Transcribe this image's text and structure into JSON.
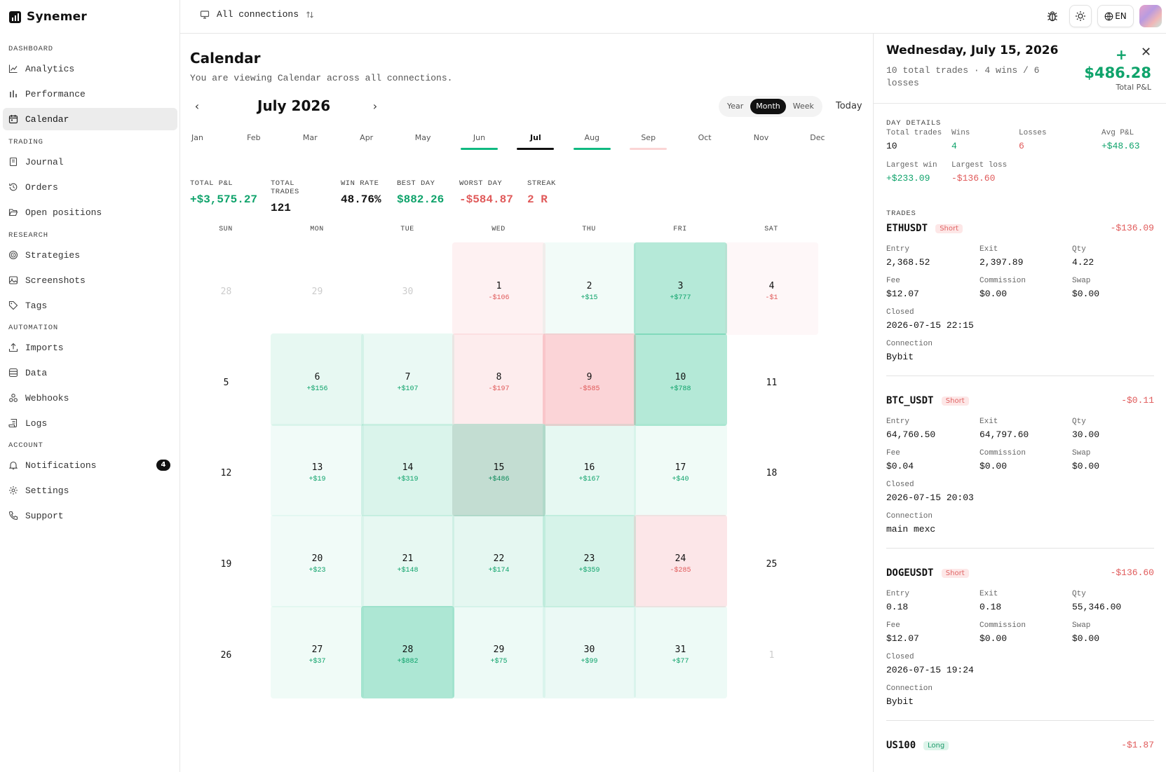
{
  "app": {
    "name": "Synemer"
  },
  "sidebar": {
    "sections": [
      {
        "title": "DASHBOARD",
        "items": [
          {
            "label": "Analytics",
            "icon": "chart-line-icon"
          },
          {
            "label": "Performance",
            "icon": "bar-chart-icon"
          },
          {
            "label": "Calendar",
            "icon": "calendar-icon",
            "active": true
          }
        ]
      },
      {
        "title": "TRADING",
        "items": [
          {
            "label": "Journal",
            "icon": "notebook-icon"
          },
          {
            "label": "Orders",
            "icon": "history-icon"
          },
          {
            "label": "Open positions",
            "icon": "folder-open-icon"
          }
        ]
      },
      {
        "title": "RESEARCH",
        "items": [
          {
            "label": "Strategies",
            "icon": "target-icon"
          },
          {
            "label": "Screenshots",
            "icon": "image-icon"
          },
          {
            "label": "Tags",
            "icon": "tag-icon"
          }
        ]
      },
      {
        "title": "AUTOMATION",
        "items": [
          {
            "label": "Imports",
            "icon": "upload-icon"
          },
          {
            "label": "Data",
            "icon": "database-icon"
          },
          {
            "label": "Webhooks",
            "icon": "webhook-icon"
          },
          {
            "label": "Logs",
            "icon": "scroll-icon"
          }
        ]
      },
      {
        "title": "ACCOUNT",
        "items": [
          {
            "label": "Notifications",
            "icon": "bell-icon",
            "badge": "4"
          },
          {
            "label": "Settings",
            "icon": "gear-icon"
          },
          {
            "label": "Support",
            "icon": "phone-icon"
          }
        ]
      }
    ]
  },
  "topbar": {
    "connection_label": "All connections",
    "language": "EN"
  },
  "main": {
    "title": "Calendar",
    "subtitle": "You are viewing Calendar across all connections.",
    "month_label": "July 2026",
    "views": [
      "Year",
      "Month",
      "Week"
    ],
    "active_view": "Month",
    "today_label": "Today",
    "months": [
      "Jan",
      "Feb",
      "Mar",
      "Apr",
      "May",
      "Jun",
      "Jul",
      "Aug",
      "Sep",
      "Oct",
      "Nov",
      "Dec"
    ],
    "current_month": "Jul",
    "month_indicators": {
      "Jun": "#10b981",
      "Jul": "#111111",
      "Aug": "#10b981",
      "Sep": "#fbd5d5"
    },
    "stats": [
      {
        "label": "TOTAL P&L",
        "value": "+$3,575.27",
        "tone": "pos"
      },
      {
        "label": "TOTAL TRADES",
        "value": "121",
        "tone": "neutral"
      },
      {
        "label": "WIN RATE",
        "value": "48.76%",
        "tone": "neutral"
      },
      {
        "label": "BEST DAY",
        "value": "$882.26",
        "tone": "pos"
      },
      {
        "label": "WORST DAY",
        "value": "-$584.87",
        "tone": "neg"
      },
      {
        "label": "STREAK",
        "value": "2 R",
        "tone": "neg"
      }
    ],
    "weekdays": [
      "SUN",
      "MON",
      "TUE",
      "WED",
      "THU",
      "FRI",
      "SAT"
    ],
    "weeks": [
      [
        {
          "day": "28",
          "other": true
        },
        {
          "day": "29",
          "other": true
        },
        {
          "day": "30",
          "other": true
        },
        {
          "day": "1",
          "pnl": "-$106",
          "v": -106
        },
        {
          "day": "2",
          "pnl": "+$15",
          "v": 15
        },
        {
          "day": "3",
          "pnl": "+$777",
          "v": 777
        },
        {
          "day": "4",
          "pnl": "-$1",
          "v": -1
        }
      ],
      [
        {
          "day": "5"
        },
        {
          "day": "6",
          "pnl": "+$156",
          "v": 156
        },
        {
          "day": "7",
          "pnl": "+$107",
          "v": 107
        },
        {
          "day": "8",
          "pnl": "-$197",
          "v": -197
        },
        {
          "day": "9",
          "pnl": "-$585",
          "v": -585
        },
        {
          "day": "10",
          "pnl": "+$788",
          "v": 788
        },
        {
          "day": "11"
        }
      ],
      [
        {
          "day": "12"
        },
        {
          "day": "13",
          "pnl": "+$19",
          "v": 19
        },
        {
          "day": "14",
          "pnl": "+$319",
          "v": 319
        },
        {
          "day": "15",
          "pnl": "+$486",
          "v": 486,
          "selected": true
        },
        {
          "day": "16",
          "pnl": "+$167",
          "v": 167
        },
        {
          "day": "17",
          "pnl": "+$40",
          "v": 40
        },
        {
          "day": "18"
        }
      ],
      [
        {
          "day": "19"
        },
        {
          "day": "20",
          "pnl": "+$23",
          "v": 23
        },
        {
          "day": "21",
          "pnl": "+$148",
          "v": 148
        },
        {
          "day": "22",
          "pnl": "+$174",
          "v": 174
        },
        {
          "day": "23",
          "pnl": "+$359",
          "v": 359
        },
        {
          "day": "24",
          "pnl": "-$285",
          "v": -285
        },
        {
          "day": "25"
        }
      ],
      [
        {
          "day": "26"
        },
        {
          "day": "27",
          "pnl": "+$37",
          "v": 37
        },
        {
          "day": "28",
          "pnl": "+$882",
          "v": 882
        },
        {
          "day": "29",
          "pnl": "+$75",
          "v": 75
        },
        {
          "day": "30",
          "pnl": "+$99",
          "v": 99
        },
        {
          "day": "31",
          "pnl": "+$77",
          "v": 77
        },
        {
          "day": "1",
          "other": true
        }
      ]
    ]
  },
  "panel": {
    "date": "Wednesday, July 15, 2026",
    "summary": "10 total trades · 4 wins / 6 losses",
    "total_pnl": "$486.28",
    "total_label": "Total P&L",
    "day_details_title": "DAY DETAILS",
    "details_row1": [
      {
        "label": "Total trades",
        "value": "10",
        "tone": "neutral"
      },
      {
        "label": "Wins",
        "value": "4",
        "tone": "pos"
      },
      {
        "label": "Losses",
        "value": "6",
        "tone": "neg"
      },
      {
        "label": "Avg P&L",
        "value": "+$48.63",
        "tone": "pos"
      }
    ],
    "details_row2": [
      {
        "label": "Largest win",
        "value": "+$233.09",
        "tone": "pos"
      },
      {
        "label": "Largest loss",
        "value": "-$136.60",
        "tone": "neg"
      }
    ],
    "trades_title": "TRADES",
    "trades": [
      {
        "symbol": "ETHUSDT",
        "side": "Short",
        "pnl": "-$136.09",
        "entry": "2,368.52",
        "exit": "2,397.89",
        "qty": "4.22",
        "fee": "$12.07",
        "commission": "$0.00",
        "swap": "$0.00",
        "closed": "2026-07-15 22:15",
        "connection": "Bybit"
      },
      {
        "symbol": "BTC_USDT",
        "side": "Short",
        "pnl": "-$0.11",
        "entry": "64,760.50",
        "exit": "64,797.60",
        "qty": "30.00",
        "fee": "$0.04",
        "commission": "$0.00",
        "swap": "$0.00",
        "closed": "2026-07-15 20:03",
        "connection": "main mexc"
      },
      {
        "symbol": "DOGEUSDT",
        "side": "Short",
        "pnl": "-$136.60",
        "entry": "0.18",
        "exit": "0.18",
        "qty": "55,346.00",
        "fee": "$12.07",
        "commission": "$0.00",
        "swap": "$0.00",
        "closed": "2026-07-15 19:24",
        "connection": "Bybit"
      },
      {
        "symbol": "US100",
        "side": "Long",
        "pnl": "-$1.87"
      }
    ],
    "field_labels": {
      "entry": "Entry",
      "exit": "Exit",
      "qty": "Qty",
      "fee": "Fee",
      "commission": "Commission",
      "swap": "Swap",
      "closed": "Closed",
      "connection": "Connection"
    }
  },
  "colors": {
    "positive": "#0fa36b",
    "negative": "#e05a5a",
    "selected_cell": "#c3ddd2"
  }
}
